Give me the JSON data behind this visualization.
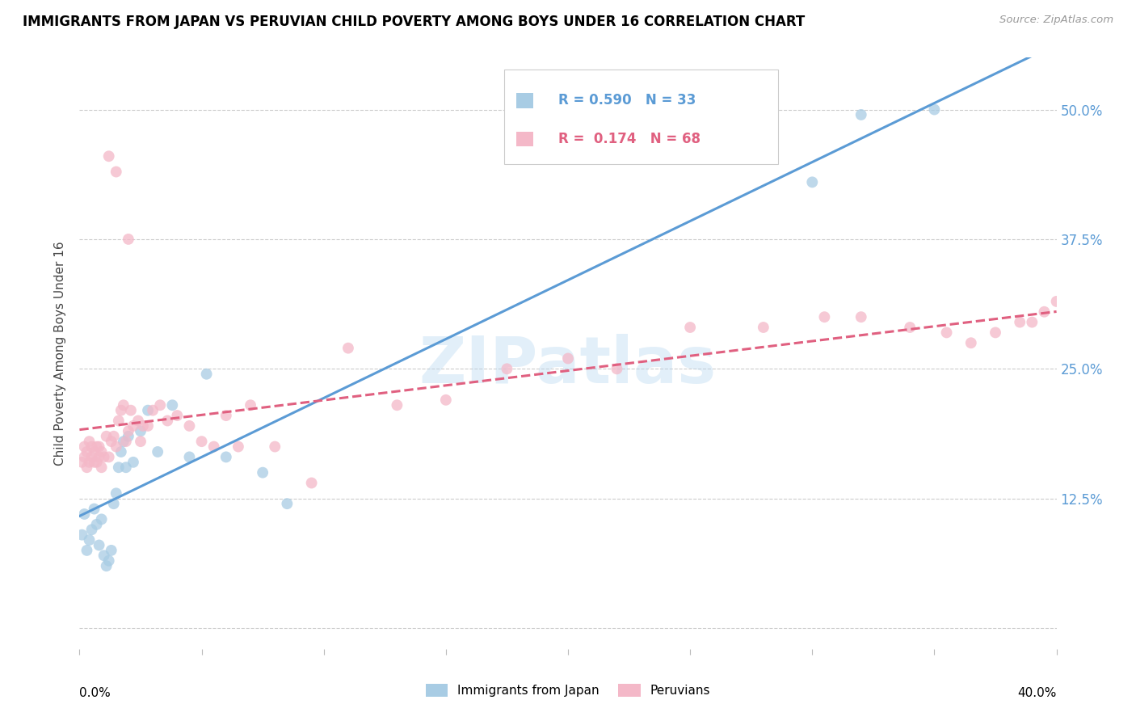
{
  "title": "IMMIGRANTS FROM JAPAN VS PERUVIAN CHILD POVERTY AMONG BOYS UNDER 16 CORRELATION CHART",
  "source": "Source: ZipAtlas.com",
  "ylabel": "Child Poverty Among Boys Under 16",
  "xlim": [
    0,
    0.4
  ],
  "ylim": [
    -0.02,
    0.55
  ],
  "legend1_R": "0.590",
  "legend1_N": "33",
  "legend2_R": "0.174",
  "legend2_N": "68",
  "blue_color": "#a8cce4",
  "blue_line_color": "#5b9bd5",
  "pink_color": "#f4b8c8",
  "pink_line_color": "#e06080",
  "watermark": "ZIPatlas",
  "japan_x": [
    0.001,
    0.002,
    0.003,
    0.004,
    0.005,
    0.006,
    0.007,
    0.008,
    0.009,
    0.01,
    0.011,
    0.012,
    0.013,
    0.014,
    0.015,
    0.016,
    0.017,
    0.018,
    0.019,
    0.02,
    0.022,
    0.025,
    0.028,
    0.032,
    0.038,
    0.045,
    0.052,
    0.06,
    0.075,
    0.085,
    0.3,
    0.32,
    0.35
  ],
  "japan_y": [
    0.09,
    0.11,
    0.075,
    0.085,
    0.095,
    0.115,
    0.1,
    0.08,
    0.105,
    0.07,
    0.06,
    0.065,
    0.075,
    0.12,
    0.13,
    0.155,
    0.17,
    0.18,
    0.155,
    0.185,
    0.16,
    0.19,
    0.21,
    0.17,
    0.215,
    0.165,
    0.245,
    0.165,
    0.15,
    0.12,
    0.43,
    0.495,
    0.5
  ],
  "peru_x": [
    0.001,
    0.002,
    0.002,
    0.003,
    0.003,
    0.004,
    0.004,
    0.005,
    0.005,
    0.006,
    0.006,
    0.007,
    0.007,
    0.008,
    0.008,
    0.009,
    0.009,
    0.01,
    0.011,
    0.012,
    0.013,
    0.014,
    0.015,
    0.016,
    0.017,
    0.018,
    0.019,
    0.02,
    0.021,
    0.022,
    0.024,
    0.025,
    0.026,
    0.028,
    0.03,
    0.033,
    0.036,
    0.04,
    0.045,
    0.05,
    0.055,
    0.06,
    0.065,
    0.07,
    0.08,
    0.095,
    0.11,
    0.13,
    0.15,
    0.175,
    0.2,
    0.22,
    0.25,
    0.28,
    0.305,
    0.32,
    0.34,
    0.355,
    0.365,
    0.375,
    0.385,
    0.39,
    0.395,
    0.4,
    0.405,
    0.012,
    0.015,
    0.02
  ],
  "peru_y": [
    0.16,
    0.165,
    0.175,
    0.155,
    0.17,
    0.16,
    0.18,
    0.165,
    0.175,
    0.16,
    0.17,
    0.175,
    0.16,
    0.165,
    0.175,
    0.155,
    0.17,
    0.165,
    0.185,
    0.165,
    0.18,
    0.185,
    0.175,
    0.2,
    0.21,
    0.215,
    0.18,
    0.19,
    0.21,
    0.195,
    0.2,
    0.18,
    0.195,
    0.195,
    0.21,
    0.215,
    0.2,
    0.205,
    0.195,
    0.18,
    0.175,
    0.205,
    0.175,
    0.215,
    0.175,
    0.14,
    0.27,
    0.215,
    0.22,
    0.25,
    0.26,
    0.25,
    0.29,
    0.29,
    0.3,
    0.3,
    0.29,
    0.285,
    0.275,
    0.285,
    0.295,
    0.295,
    0.305,
    0.315,
    0.295,
    0.455,
    0.44,
    0.375
  ]
}
